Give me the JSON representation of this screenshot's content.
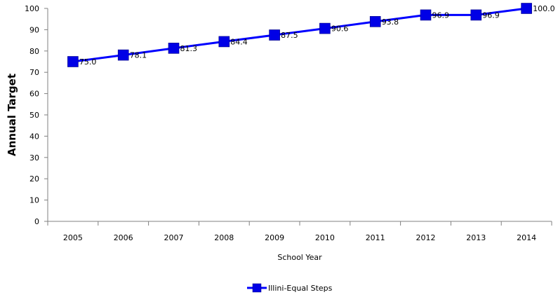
{
  "chart_data": {
    "type": "line",
    "categories": [
      "2005",
      "2006",
      "2007",
      "2008",
      "2009",
      "2010",
      "2011",
      "2012",
      "2013",
      "2014"
    ],
    "series": [
      {
        "name": "Illini-Equal Steps",
        "values": [
          75.0,
          78.1,
          81.3,
          84.4,
          87.5,
          90.6,
          93.8,
          96.9,
          96.9,
          100.0
        ],
        "data_labels": [
          "75.0",
          "78.1",
          "81.3",
          "84.4",
          "87.5",
          "90.6",
          "93.8",
          "96.9",
          "96.9",
          "100.0"
        ],
        "color": "#0000FF",
        "marker_color": "#0000E6"
      }
    ],
    "xlabel": "School Year",
    "ylabel": "Annual Target",
    "ylim": [
      0,
      100
    ],
    "yticks": [
      "0",
      "10",
      "20",
      "30",
      "40",
      "50",
      "60",
      "70",
      "80",
      "90",
      "100"
    ],
    "grid": false,
    "legend": "bottom"
  }
}
